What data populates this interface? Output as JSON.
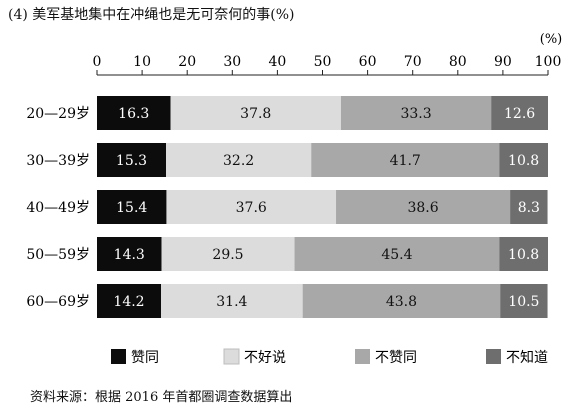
{
  "title": "(4) 美军基地集中在冲绳也是无可奈何的事(%)",
  "source": "资料来源：根据 2016 年首都圈调查数据算出",
  "colors": {
    "agree": "#0c0c0c",
    "disagree": "#dcdcdc",
    "strongly_disagree": "#a8a8a8",
    "unknown": "#6e6e6e"
  },
  "chart_data": {
    "type": "bar",
    "orientation": "horizontal",
    "stacked": true,
    "unit_label": "(%)",
    "xlim": [
      0,
      100
    ],
    "xticks": [
      0,
      10,
      20,
      30,
      40,
      50,
      60,
      70,
      80,
      90,
      100
    ],
    "axis_position": "top",
    "grid": false,
    "legend_position": "bottom",
    "categories": [
      "20—29岁",
      "30—39岁",
      "40—49岁",
      "50—59岁",
      "60—69岁"
    ],
    "series": [
      {
        "name": "赞同",
        "values": [
          16.3,
          15.3,
          15.4,
          14.3,
          14.2
        ]
      },
      {
        "name": "不好说",
        "values": [
          37.8,
          32.2,
          37.6,
          29.5,
          31.4
        ]
      },
      {
        "name": "不赞同",
        "values": [
          33.3,
          41.7,
          38.6,
          45.4,
          43.8
        ]
      },
      {
        "name": "不知道",
        "values": [
          12.6,
          10.8,
          8.3,
          10.8,
          10.5
        ]
      }
    ]
  }
}
